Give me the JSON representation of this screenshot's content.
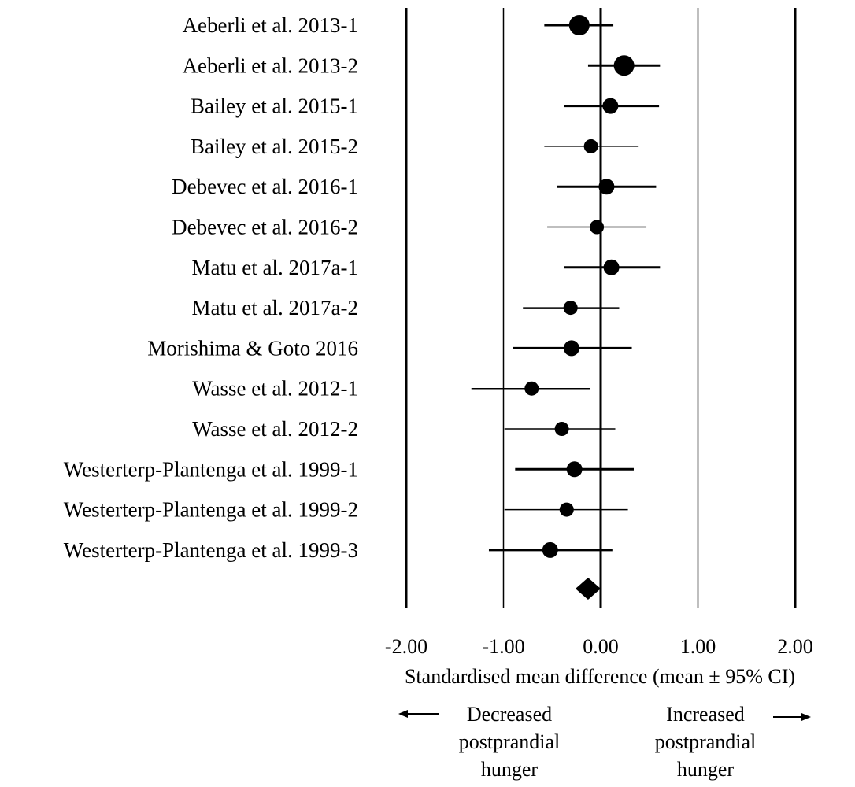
{
  "chart_data": {
    "type": "forest",
    "xlabel": "Standardised mean difference (mean ± 95% CI)",
    "xlim": [
      -2.0,
      2.0
    ],
    "x_ticks": [
      -2.0,
      -1.0,
      0.0,
      1.0,
      2.0
    ],
    "x_tick_labels": [
      "-2.00",
      "-1.00",
      "0.00",
      "1.00",
      "2.00"
    ],
    "studies": [
      {
        "label": "Aeberli et al. 2013-1",
        "mean": -0.22,
        "lower": -0.58,
        "upper": 0.13,
        "weight": 3
      },
      {
        "label": "Aeberli et al. 2013-2",
        "mean": 0.24,
        "lower": -0.13,
        "upper": 0.61,
        "weight": 3
      },
      {
        "label": "Bailey et al. 2015-1",
        "mean": 0.1,
        "lower": -0.38,
        "upper": 0.6,
        "weight": 2
      },
      {
        "label": "Bailey et al. 2015-2",
        "mean": -0.1,
        "lower": -0.58,
        "upper": 0.39,
        "weight": 1
      },
      {
        "label": "Debevec et al. 2016-1",
        "mean": 0.06,
        "lower": -0.45,
        "upper": 0.57,
        "weight": 2
      },
      {
        "label": "Debevec et al. 2016-2",
        "mean": -0.04,
        "lower": -0.55,
        "upper": 0.47,
        "weight": 1
      },
      {
        "label": "Matu et al. 2017a-1",
        "mean": 0.11,
        "lower": -0.38,
        "upper": 0.61,
        "weight": 2
      },
      {
        "label": "Matu et al. 2017a-2",
        "mean": -0.31,
        "lower": -0.8,
        "upper": 0.19,
        "weight": 1
      },
      {
        "label": "Morishima & Goto 2016",
        "mean": -0.3,
        "lower": -0.9,
        "upper": 0.32,
        "weight": 2
      },
      {
        "label": "Wasse et al. 2012-1",
        "mean": -0.71,
        "lower": -1.33,
        "upper": -0.11,
        "weight": 1
      },
      {
        "label": "Wasse et al. 2012-2",
        "mean": -0.4,
        "lower": -0.99,
        "upper": 0.15,
        "weight": 1
      },
      {
        "label": "Westerterp-Plantenga et al. 1999-1",
        "mean": -0.27,
        "lower": -0.88,
        "upper": 0.34,
        "weight": 2
      },
      {
        "label": "Westerterp-Plantenga et al. 1999-2",
        "mean": -0.35,
        "lower": -0.99,
        "upper": 0.28,
        "weight": 1
      },
      {
        "label": "Westerterp-Plantenga et al. 1999-3",
        "mean": -0.52,
        "lower": -1.15,
        "upper": 0.12,
        "weight": 2
      }
    ],
    "pooled": {
      "mean": -0.13
    },
    "grid": true
  },
  "annotations": {
    "left_arrow": "←",
    "right_arrow": "→",
    "decreased": [
      "Decreased",
      "postprandial",
      "hunger"
    ],
    "increased": [
      "Increased",
      "postprandial",
      "hunger"
    ]
  }
}
